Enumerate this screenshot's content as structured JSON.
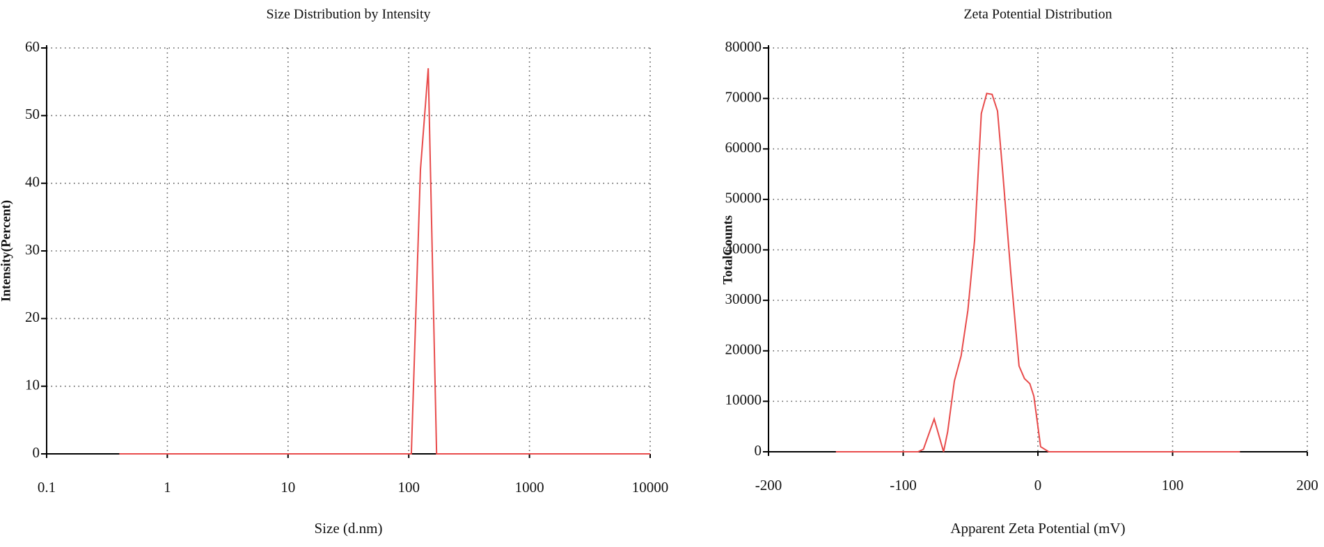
{
  "chart_data": [
    {
      "type": "line",
      "title": "Size Distribution by Intensity",
      "xlabel": "Size (d.nm)",
      "ylabel": "Intensity(Percent)",
      "xscale": "log",
      "xlim": [
        0.1,
        10000
      ],
      "xticks": [
        0.1,
        1,
        10,
        100,
        1000,
        10000
      ],
      "ylim": [
        0,
        60
      ],
      "yticks": [
        0,
        10,
        20,
        30,
        40,
        50,
        60
      ],
      "grid": true,
      "x": [
        0.4,
        105,
        125,
        145,
        170,
        10000
      ],
      "series": [
        {
          "color": "#e84a4a",
          "values": [
            0,
            0,
            42,
            57,
            0,
            0
          ]
        }
      ]
    },
    {
      "type": "line",
      "title": "Zeta Potential Distribution",
      "xlabel": "Apparent Zeta Potential (mV)",
      "ylabel": "TotalCounts",
      "xscale": "linear",
      "xlim": [
        -200,
        200
      ],
      "xticks": [
        -200,
        -100,
        0,
        100,
        200
      ],
      "ylim": [
        0,
        80000
      ],
      "yticks": [
        0,
        10000,
        20000,
        30000,
        40000,
        50000,
        60000,
        70000,
        80000
      ],
      "grid": true,
      "x": [
        -150,
        -89,
        -85,
        -77,
        -70,
        -67,
        -62,
        -57,
        -52,
        -47,
        -42,
        -38,
        -34,
        -30,
        -26,
        -20,
        -14,
        -10,
        -6,
        -3,
        2,
        8,
        10,
        150
      ],
      "series": [
        {
          "color": "#e84a4a",
          "values": [
            0,
            0,
            500,
            6500,
            0,
            4000,
            14000,
            19000,
            28000,
            42000,
            67000,
            71000,
            70800,
            67500,
            55000,
            35000,
            17000,
            14500,
            13500,
            11000,
            1000,
            0,
            0,
            0
          ]
        }
      ]
    }
  ]
}
